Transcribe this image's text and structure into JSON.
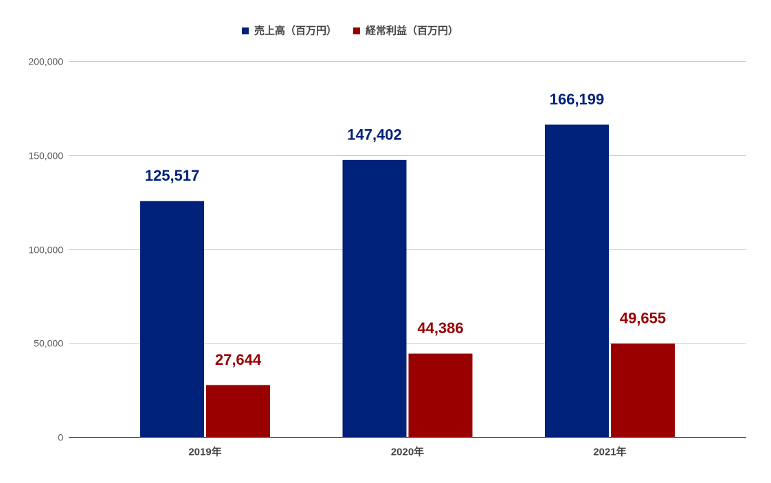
{
  "chart_data": {
    "type": "bar",
    "categories": [
      "2019年",
      "2020年",
      "2021年"
    ],
    "series": [
      {
        "name": "売上高（百万円）",
        "values": [
          125517,
          147402,
          166199
        ],
        "data_labels": [
          "125,517",
          "147,402",
          "166,199"
        ],
        "color": "#00217a"
      },
      {
        "name": "経常利益（百万円）",
        "values": [
          27644,
          44386,
          49655
        ],
        "data_labels": [
          "27,644",
          "44,386",
          "49,655"
        ],
        "color": "#990000"
      }
    ],
    "yticks": [
      0,
      50000,
      100000,
      150000,
      200000
    ],
    "ytick_labels": [
      "0",
      "50,000",
      "100,000",
      "150,000",
      "200,000"
    ],
    "ylim": [
      0,
      200000
    ],
    "grid": true,
    "legend_position": "top"
  }
}
